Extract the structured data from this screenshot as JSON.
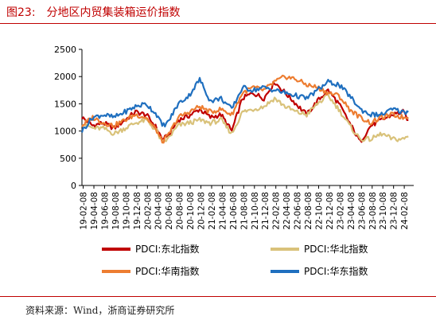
{
  "figure": {
    "number": "图23:",
    "title": "分地区内贸集装箱运价指数",
    "source": "资料来源：Wind，浙商证券研究所"
  },
  "chart_data": {
    "type": "line",
    "title": "分地区内贸集装箱运价指数",
    "xlabel": "",
    "ylabel": "",
    "ylim": [
      0,
      2500
    ],
    "yticks": [
      0,
      500,
      1000,
      1500,
      2000,
      2500
    ],
    "xlim": [
      "2019-02-01",
      "2024-04-01"
    ],
    "xticks": [
      "19-02-08",
      "19-04-08",
      "19-06-08",
      "19-08-08",
      "19-10-08",
      "19-12-08",
      "20-02-08",
      "20-04-08",
      "20-06-08",
      "20-08-08",
      "20-10-08",
      "20-12-08",
      "21-02-08",
      "21-04-08",
      "21-06-08",
      "21-08-08",
      "21-10-08",
      "21-12-08",
      "22-02-08",
      "22-04-08",
      "22-06-08",
      "22-08-08",
      "22-10-08",
      "22-12-08",
      "23-02-08",
      "23-04-08",
      "23-06-08",
      "23-08-08",
      "23-10-08",
      "23-12-08",
      "24-02-08"
    ],
    "grid": false,
    "legend_position": "bottom",
    "series": [
      {
        "name": "PDCI:东北指数",
        "color": "#c00000",
        "x": [
          "2019-02",
          "2019-04",
          "2019-06",
          "2019-08",
          "2019-10",
          "2019-12",
          "2020-02",
          "2020-04",
          "2020-05",
          "2020-06",
          "2020-08",
          "2020-10",
          "2020-12",
          "2021-02",
          "2021-04",
          "2021-06",
          "2021-08",
          "2021-10",
          "2021-12",
          "2022-02",
          "2022-04",
          "2022-06",
          "2022-08",
          "2022-10",
          "2022-12",
          "2023-02",
          "2023-04",
          "2023-06",
          "2023-08",
          "2023-10",
          "2023-12",
          "2024-02",
          "2024-03"
        ],
        "values": [
          1250,
          1100,
          1150,
          1050,
          1200,
          1350,
          1300,
          1050,
          850,
          900,
          1200,
          1280,
          1400,
          1250,
          1300,
          1000,
          1600,
          1700,
          1600,
          1900,
          1700,
          1500,
          1300,
          1550,
          1750,
          1500,
          1150,
          800,
          1100,
          1200,
          1300,
          1350,
          1200
        ]
      },
      {
        "name": "PDCI:华北指数",
        "color": "#d9c27a",
        "x": [
          "2019-02",
          "2019-04",
          "2019-06",
          "2019-08",
          "2019-10",
          "2019-12",
          "2020-02",
          "2020-04",
          "2020-05",
          "2020-06",
          "2020-08",
          "2020-10",
          "2020-12",
          "2021-02",
          "2021-04",
          "2021-06",
          "2021-08",
          "2021-10",
          "2021-12",
          "2022-02",
          "2022-04",
          "2022-06",
          "2022-08",
          "2022-10",
          "2022-12",
          "2023-02",
          "2023-04",
          "2023-06",
          "2023-08",
          "2023-10",
          "2023-12",
          "2024-02",
          "2024-03"
        ],
        "values": [
          1150,
          1050,
          1050,
          950,
          1050,
          1150,
          1200,
          1000,
          780,
          850,
          1100,
          1150,
          1200,
          1150,
          1200,
          950,
          1350,
          1400,
          1450,
          1600,
          1450,
          1350,
          1300,
          1500,
          1650,
          1400,
          1100,
          850,
          850,
          950,
          850,
          850,
          900
        ]
      },
      {
        "name": "PDCI:华南指数",
        "color": "#ed7d31",
        "x": [
          "2019-02",
          "2019-04",
          "2019-06",
          "2019-08",
          "2019-10",
          "2019-12",
          "2020-02",
          "2020-04",
          "2020-05",
          "2020-06",
          "2020-08",
          "2020-10",
          "2020-12",
          "2021-02",
          "2021-04",
          "2021-06",
          "2021-08",
          "2021-10",
          "2021-12",
          "2022-02",
          "2022-04",
          "2022-06",
          "2022-08",
          "2022-10",
          "2022-12",
          "2023-02",
          "2023-04",
          "2023-06",
          "2023-08",
          "2023-10",
          "2023-12",
          "2024-02",
          "2024-03"
        ],
        "values": [
          1100,
          1250,
          1150,
          1100,
          1200,
          1300,
          1250,
          1000,
          800,
          900,
          1250,
          1350,
          1450,
          1350,
          1400,
          1300,
          1700,
          1800,
          1750,
          1900,
          2000,
          1950,
          1850,
          1800,
          1700,
          1650,
          1400,
          1250,
          1150,
          1250,
          1300,
          1250,
          1250
        ]
      },
      {
        "name": "PDCI:华东指数",
        "color": "#1f6fbf",
        "x": [
          "2019-02",
          "2019-04",
          "2019-06",
          "2019-08",
          "2019-10",
          "2019-12",
          "2020-02",
          "2020-04",
          "2020-05",
          "2020-06",
          "2020-08",
          "2020-10",
          "2020-12",
          "2021-02",
          "2021-04",
          "2021-06",
          "2021-08",
          "2021-10",
          "2021-12",
          "2022-02",
          "2022-04",
          "2022-06",
          "2022-08",
          "2022-10",
          "2022-12",
          "2023-02",
          "2023-04",
          "2023-06",
          "2023-08",
          "2023-10",
          "2023-12",
          "2024-02",
          "2024-03"
        ],
        "values": [
          1000,
          1250,
          1300,
          1250,
          1350,
          1450,
          1500,
          1300,
          1100,
          1150,
          1500,
          1650,
          1950,
          1550,
          1600,
          1400,
          1800,
          1750,
          1800,
          1750,
          1700,
          1650,
          1600,
          1750,
          1900,
          1850,
          1650,
          1400,
          1300,
          1300,
          1400,
          1350,
          1350
        ]
      }
    ]
  }
}
